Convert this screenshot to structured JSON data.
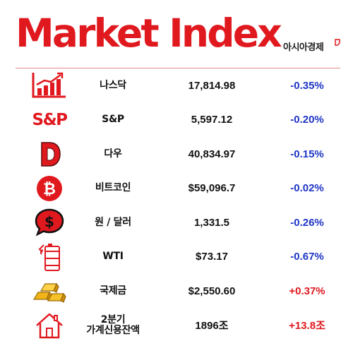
{
  "header": {
    "title": "Market Index",
    "brand": "아시아경제",
    "accent_color": "#e0191f"
  },
  "rows": [
    {
      "icon": "bar-chart-up-icon",
      "name": "나스닥",
      "value": "17,814.98",
      "change": "-0.35%",
      "direction": "down"
    },
    {
      "icon": "sp-logo-icon",
      "icon_text": "S&P",
      "name": "S&P",
      "value": "5,597.12",
      "change": "-0.20%",
      "direction": "down"
    },
    {
      "icon": "dow-letter-d-icon",
      "icon_text": "D",
      "name": "다우",
      "value": "40,834.97",
      "change": "-0.15%",
      "direction": "down"
    },
    {
      "icon": "bitcoin-coin-icon",
      "name": "비트코인",
      "value": "$59,096.7",
      "change": "-0.02%",
      "direction": "down"
    },
    {
      "icon": "dollar-speech-bubble-icon",
      "name": "원 / 달러",
      "value": "1,331.5",
      "change": "-0.26%",
      "direction": "down"
    },
    {
      "icon": "oil-barrel-icon",
      "name": "WTI",
      "value": "$73.17",
      "change": "-0.67%",
      "direction": "down"
    },
    {
      "icon": "gold-bars-icon",
      "name": "국제금",
      "value": "$2,550.60",
      "change": "+0.37%",
      "direction": "up"
    },
    {
      "icon": "house-icon",
      "name_line1": "2분기",
      "name_line2": "가계신용잔액",
      "value": "1896조",
      "change": "+13.8조",
      "direction": "up"
    }
  ]
}
